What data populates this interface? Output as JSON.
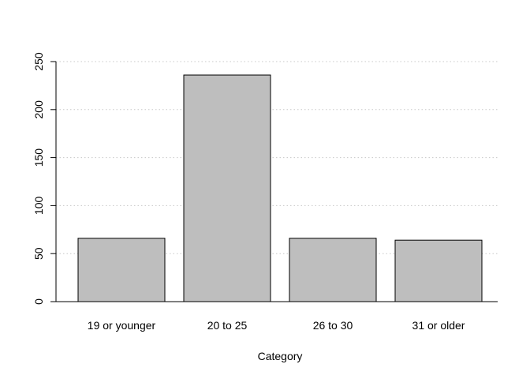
{
  "chart_data": {
    "type": "bar",
    "categories": [
      "19 or younger",
      "20 to 25",
      "26 to 30",
      "31 or older"
    ],
    "values": [
      66,
      236,
      66,
      64
    ],
    "title": "",
    "xlabel": "Category",
    "ylabel": "",
    "ylim": [
      0,
      250
    ],
    "yticks": [
      0,
      50,
      100,
      150,
      200,
      250
    ],
    "grid": "horizontal-dotted",
    "legend": "none",
    "bar_color": "#bebebe",
    "bar_border_color": "#000000",
    "grid_color": "#c8c8c8"
  }
}
